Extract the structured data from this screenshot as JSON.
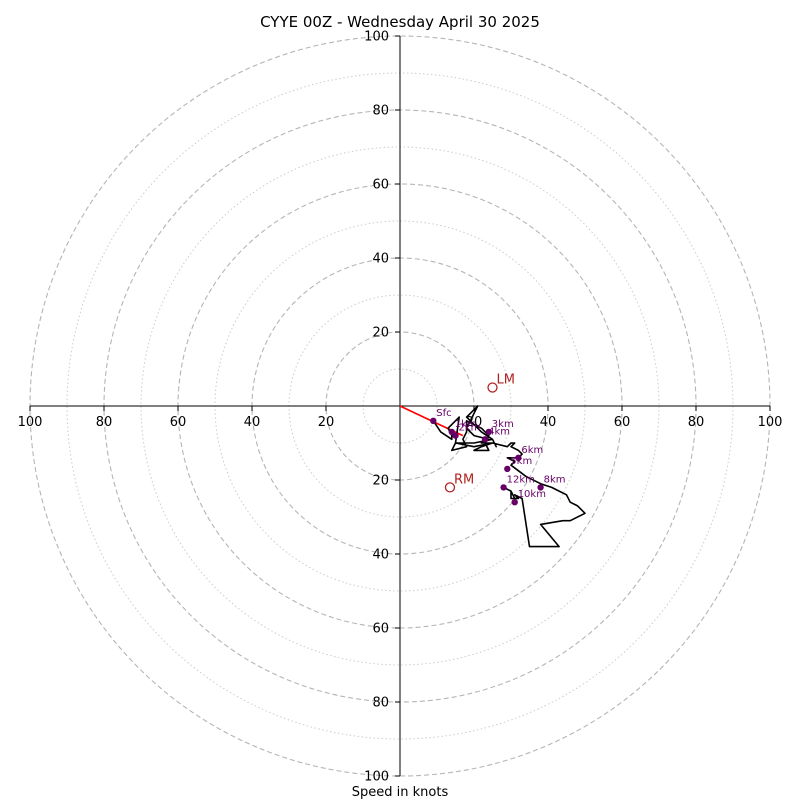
{
  "chart_data": {
    "type": "hodograph",
    "title": "CYYE 00Z - Wednesday April 30 2025",
    "xlabel": "Speed in knots",
    "rings": {
      "major": [
        20,
        40,
        60,
        80,
        100
      ],
      "minor": [
        10,
        30,
        50,
        70,
        90
      ],
      "max": 100,
      "major_style": "dashed",
      "minor_style": "dotted"
    },
    "axis_ticks": {
      "left": [
        "100",
        "80",
        "60",
        "40",
        "20"
      ],
      "right": [
        "20",
        "40",
        "60",
        "80",
        "100"
      ],
      "up": [
        "20",
        "40",
        "60",
        "80",
        "100"
      ],
      "down": [
        "20",
        "40",
        "60",
        "80",
        "100"
      ]
    },
    "trace": {
      "u": [
        9,
        11,
        14,
        14,
        13,
        16,
        15,
        20,
        25,
        22,
        20,
        24,
        23,
        24,
        22,
        18,
        18,
        17,
        18,
        14,
        15,
        20,
        25,
        26,
        25,
        22,
        18,
        19,
        21,
        19,
        18,
        20,
        24,
        22,
        25,
        29,
        30,
        31,
        30,
        32,
        33,
        32,
        29,
        31,
        30,
        34,
        38,
        41,
        43,
        45,
        46,
        48,
        50,
        46,
        44,
        38,
        43,
        38,
        37,
        35,
        33,
        31,
        32,
        30,
        30,
        28,
        30,
        31
      ],
      "v": [
        -4,
        -7,
        -9,
        -8,
        -6,
        -3,
        -10,
        -11,
        -10,
        -11,
        -12,
        -12,
        -10,
        -8,
        -6,
        -4,
        -7,
        -9,
        -11,
        -12,
        -10,
        -10,
        -9,
        -11,
        -9,
        -7,
        -3,
        -2,
        0,
        -4,
        -6,
        -8,
        -9,
        -10,
        -10,
        -11,
        -10,
        -10,
        -11,
        -12,
        -13,
        -14,
        -14,
        -15,
        -16,
        -19,
        -21,
        -22,
        -23,
        -24,
        -26,
        -27,
        -29,
        -31,
        -31,
        -32,
        -38,
        -38,
        -38,
        -38,
        -25,
        -24,
        -25,
        -25,
        -23,
        -22,
        -23,
        -25
      ]
    },
    "trace_color": "#000000",
    "height_points": [
      {
        "label": "Sfc",
        "u": 9,
        "v": -4
      },
      {
        "label": "1km",
        "u": 14,
        "v": -7
      },
      {
        "label": "2km",
        "u": 15,
        "v": -8
      },
      {
        "label": "3km",
        "u": 24,
        "v": -7
      },
      {
        "label": "4km",
        "u": 23,
        "v": -9
      },
      {
        "label": "5km",
        "u": 29,
        "v": -17
      },
      {
        "label": "6km",
        "u": 32,
        "v": -14
      },
      {
        "label": "8km",
        "u": 38,
        "v": -22
      },
      {
        "label": "10km",
        "u": 31,
        "v": -26
      },
      {
        "label": "12km",
        "u": 28,
        "v": -22
      }
    ],
    "height_point_color": "#660066",
    "storm_motion_line": {
      "u": 17,
      "v": -8,
      "color": "#ff0000"
    },
    "movers": [
      {
        "label": "LM",
        "u": 25,
        "v": 5
      },
      {
        "label": "RM",
        "u": 13.5,
        "v": -22
      }
    ],
    "mover_color": "#b22222"
  }
}
